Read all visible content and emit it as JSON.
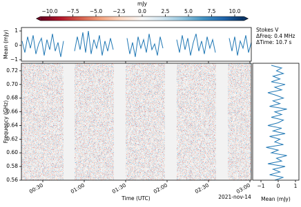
{
  "chart_data": [
    {
      "type": "heatmap",
      "colorbar_label": "mJy",
      "colormap": "RdBu",
      "clim": [
        -11,
        11
      ],
      "cticks": [
        {
          "value": -10,
          "label": "−10.0"
        },
        {
          "value": -7.5,
          "label": "−7.5"
        },
        {
          "value": -5,
          "label": "−5.0"
        },
        {
          "value": -2.5,
          "label": "−2.5"
        },
        {
          "value": 0,
          "label": "0.0"
        },
        2.5,
        {
          "value": 5,
          "label": "5.0"
        },
        7.5,
        {
          "value": 10,
          "label": "10.0"
        }
      ],
      "xlabel": "Time (UTC)",
      "x_date_label": "2021-nov-14",
      "xlim": [
        14.5,
        181
      ],
      "xticks": [
        {
          "value": 30,
          "label": "00:30"
        },
        {
          "value": 60,
          "label": "01:00"
        },
        {
          "value": 90,
          "label": "01:30"
        },
        {
          "value": 120,
          "label": "02:00"
        },
        {
          "value": 150,
          "label": "02:30"
        },
        {
          "value": 180,
          "label": "03:00"
        }
      ],
      "ylabel": "Frequency (GHz)",
      "ylim": [
        0.56,
        0.731
      ],
      "yticks": [
        0.56,
        0.58,
        {
          "value": 0.6,
          "label": "0.60"
        },
        0.62,
        0.64,
        0.66,
        0.68,
        {
          "value": 0.7,
          "label": "0.70"
        },
        0.72
      ],
      "time_segments": [
        [
          14.5,
          45
        ],
        [
          53,
          81.5
        ],
        [
          90,
          118.5
        ],
        [
          127,
          155.5
        ],
        [
          164,
          181
        ]
      ],
      "annotations": [
        "Stokes V",
        "ΔFreq: 0.4 MHz",
        "ΔTime: 10.7 s"
      ]
    },
    {
      "type": "line",
      "ylabel": "Mean (mJy)",
      "color": "#1f77b4",
      "xlim": [
        14.5,
        181
      ],
      "ylim": [
        -1.1,
        1.24
      ],
      "yticks": [
        {
          "value": -1,
          "label": "−1"
        },
        0,
        1
      ],
      "x": [
        15,
        17,
        19,
        21,
        23,
        25,
        27,
        29,
        31,
        33,
        35,
        37,
        39,
        41,
        43,
        45,
        47,
        49,
        51,
        53,
        55,
        57,
        59,
        61,
        63,
        65,
        67,
        69,
        71,
        73,
        75,
        77,
        79,
        81,
        83,
        85,
        87,
        89,
        91,
        93,
        95,
        97,
        99,
        101,
        103,
        105,
        107,
        109,
        111,
        113,
        115,
        117,
        119,
        121,
        123,
        125,
        127,
        129,
        131,
        133,
        135,
        137,
        139,
        141,
        143,
        145,
        147,
        149,
        151,
        153,
        155,
        157,
        159,
        161,
        163,
        165,
        167,
        169,
        171,
        173,
        175,
        177,
        179,
        181
      ],
      "values": [
        0.3,
        -0.5,
        0.6,
        -0.2,
        0.7,
        -0.6,
        0.1,
        0.5,
        -0.7,
        0.4,
        -0.3,
        0.8,
        -0.4,
        0.2,
        -0.8,
        0.3,
        null,
        null,
        null,
        -0.4,
        0.6,
        -0.3,
        0.9,
        -0.5,
        1.0,
        -0.6,
        0.4,
        -0.2,
        0.7,
        -0.7,
        0.3,
        -0.4,
        0.5,
        -0.3,
        null,
        null,
        null,
        null,
        0.5,
        -0.6,
        0.2,
        -0.8,
        0.6,
        -0.2,
        0.4,
        -0.5,
        0.8,
        -0.3,
        0.1,
        -0.7,
        0.6,
        -0.2,
        null,
        null,
        null,
        null,
        0.4,
        -0.5,
        0.7,
        -0.3,
        0.5,
        -0.7,
        0.2,
        0.8,
        -0.4,
        0.3,
        -0.6,
        0.6,
        -0.2,
        0.4,
        -0.5,
        null,
        null,
        null,
        null,
        0.5,
        -0.4,
        0.6,
        -0.7,
        0.3,
        -0.2,
        0.7,
        -0.5,
        0.2
      ]
    },
    {
      "type": "line",
      "orientation": "horizontal",
      "xlabel": "Mean (mJy)",
      "color": "#1f77b4",
      "xlim": [
        -1.48,
        1.2
      ],
      "ylim": [
        0.56,
        0.731
      ],
      "xticks": [
        {
          "value": -1,
          "label": "−1"
        },
        0,
        1
      ],
      "y": [
        0.56,
        0.564,
        0.568,
        0.572,
        0.576,
        0.58,
        0.584,
        0.588,
        0.592,
        0.596,
        0.6,
        0.604,
        0.608,
        0.612,
        0.616,
        0.62,
        0.624,
        0.628,
        0.632,
        0.636,
        0.64,
        0.644,
        0.648,
        0.652,
        0.656,
        0.66,
        0.664,
        0.668,
        0.672,
        0.676,
        0.68,
        0.684,
        0.688,
        0.692,
        0.696,
        0.7,
        0.704,
        0.708,
        0.712,
        0.716,
        0.72,
        0.724,
        0.728
      ],
      "values": [
        -0.2,
        0.3,
        -0.5,
        0.1,
        -0.3,
        0.4,
        -0.6,
        0.2,
        -0.1,
        0.5,
        -0.4,
        0.0,
        -0.7,
        0.3,
        -0.2,
        0.1,
        -0.5,
        0.4,
        -0.3,
        0.2,
        -0.6,
        0.0,
        0.3,
        -0.4,
        0.2,
        -0.2,
        0.5,
        -0.5,
        0.1,
        -0.3,
        0.3,
        -0.1,
        -0.6,
        0.2,
        -0.2,
        0.4,
        -0.4,
        0.1,
        -0.3,
        0.3,
        -0.1,
        0.2,
        -0.4
      ]
    }
  ]
}
